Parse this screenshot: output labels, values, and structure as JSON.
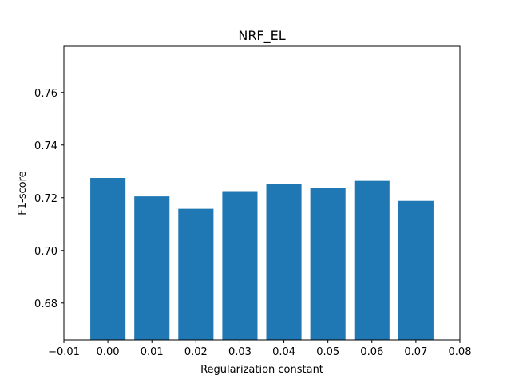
{
  "chart_data": {
    "type": "bar",
    "title": "NRF_EL",
    "xlabel": "Regularization constant",
    "ylabel": "F1-score",
    "x": [
      0.0,
      0.01,
      0.02,
      0.03,
      0.04,
      0.05,
      0.06,
      0.07
    ],
    "values": [
      0.7275,
      0.7205,
      0.7158,
      0.7225,
      0.7252,
      0.7237,
      0.7264,
      0.7188
    ],
    "xlim": [
      -0.01,
      0.08
    ],
    "ylim": [
      0.666,
      0.7775
    ],
    "x_ticks": [
      "−0.01",
      "0.00",
      "0.01",
      "0.02",
      "0.03",
      "0.04",
      "0.05",
      "0.06",
      "0.07",
      "0.08"
    ],
    "y_ticks": [
      "0.68",
      "0.70",
      "0.72",
      "0.74",
      "0.76"
    ],
    "bar_color": "#1f77b4",
    "grid": false
  }
}
